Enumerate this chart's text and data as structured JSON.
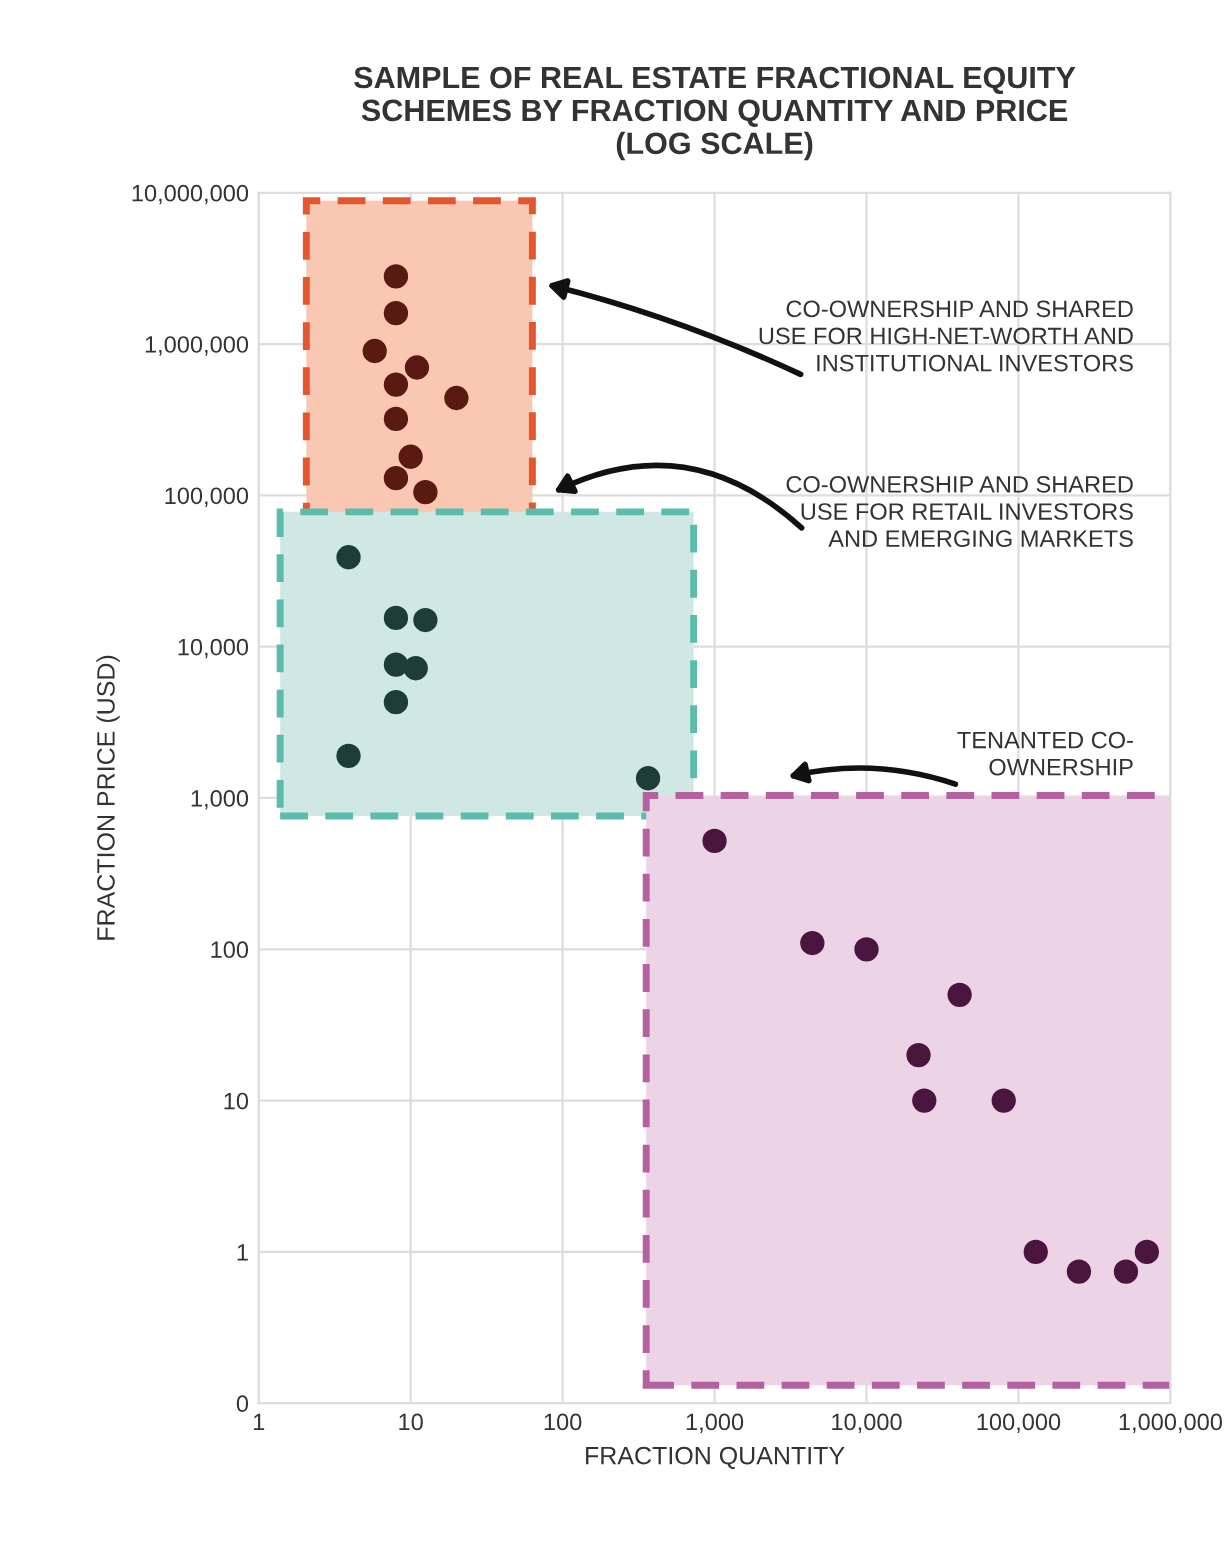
{
  "chart_data": {
    "type": "scatter",
    "title": "SAMPLE OF REAL ESTATE FRACTIONAL EQUITY\nSCHEMES BY FRACTION QUANTITY AND PRICE\n(LOG SCALE)",
    "xlabel": "FRACTION QUANTITY",
    "ylabel": "FRACTION PRICE (USD)",
    "log": "xy",
    "grid": true,
    "marker": "circle",
    "xlim": [
      1,
      1000000
    ],
    "xticks": [
      {
        "value": 1,
        "label": "1"
      },
      {
        "value": 10,
        "label": "10"
      },
      {
        "value": 100,
        "label": "100"
      },
      {
        "value": 1000,
        "label": "1,000"
      },
      {
        "value": 10000,
        "label": "10,000"
      },
      {
        "value": 100000,
        "label": "100,000"
      },
      {
        "value": 1000000,
        "label": "1,000,000"
      }
    ],
    "ylim": [
      0.1,
      10000000
    ],
    "yticks": [
      {
        "value": 0.1,
        "label": "0"
      },
      {
        "value": 1,
        "label": "1"
      },
      {
        "value": 10,
        "label": "10"
      },
      {
        "value": 100,
        "label": "100"
      },
      {
        "value": 1000,
        "label": "1,000"
      },
      {
        "value": 10000,
        "label": "10,000"
      },
      {
        "value": 100000,
        "label": "100,000"
      },
      {
        "value": 1000000,
        "label": "1,000,000"
      },
      {
        "value": 10000000,
        "label": "10,000,000"
      }
    ],
    "series": [
      {
        "color": "#5a1a12",
        "x": [
          8,
          8,
          5.8,
          11,
          8,
          20,
          8,
          10,
          8,
          12.5
        ],
        "values": [
          2800000,
          1600000,
          900000,
          700000,
          540000,
          440000,
          320000,
          180000,
          130000,
          105000
        ]
      },
      {
        "color": "#1e3d36",
        "x": [
          3.9,
          8,
          12.5,
          8,
          10.8,
          8,
          3.9,
          365
        ],
        "values": [
          39000,
          15500,
          15000,
          7600,
          7200,
          4300,
          1900,
          1350
        ]
      },
      {
        "color": "#4a1640",
        "x": [
          1000,
          4400,
          10000,
          41000,
          22000,
          24000,
          80000,
          130000,
          250000,
          510000,
          700000
        ],
        "values": [
          520,
          110,
          100,
          50,
          20,
          10,
          10,
          1,
          0.74,
          0.74,
          1
        ]
      }
    ],
    "annotations": [
      "CO-OWNERSHIP AND SHARED\nUSE FOR HIGH-NET-WORTH AND\nINSTITUTIONAL INVESTORS",
      "CO-OWNERSHIP AND SHARED\nUSE FOR RETAIL INVESTORS\nAND EMERGING MARKETS",
      "TENANTED CO-\nOWNERSHIP"
    ]
  }
}
